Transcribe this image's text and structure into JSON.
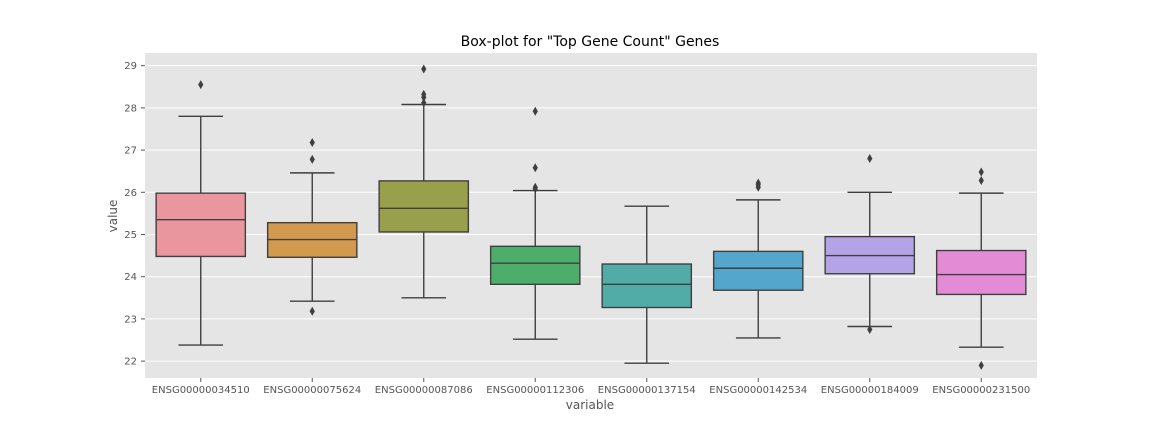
{
  "chart_data": {
    "type": "box",
    "title": "Box-plot for \"Top Gene Count\" Genes",
    "xlabel": "variable",
    "ylabel": "value",
    "ylim": [
      21.6,
      29.3
    ],
    "yticks": [
      22,
      23,
      24,
      25,
      26,
      27,
      28,
      29
    ],
    "grid": true,
    "legend": "none",
    "categories": [
      "ENSG00000034510",
      "ENSG00000075624",
      "ENSG00000087086",
      "ENSG00000112306",
      "ENSG00000137154",
      "ENSG00000142534",
      "ENSG00000184009",
      "ENSG00000231500"
    ],
    "boxes": [
      {
        "whisker_low": 22.38,
        "q1": 24.48,
        "median": 25.35,
        "q3": 25.98,
        "whisker_high": 27.8,
        "outliers": [
          28.55
        ],
        "color": "#e9969f"
      },
      {
        "whisker_low": 23.42,
        "q1": 24.46,
        "median": 24.88,
        "q3": 25.28,
        "whisker_high": 26.46,
        "outliers": [
          23.18,
          26.78,
          27.18
        ],
        "color": "#d29a4f"
      },
      {
        "whisker_low": 23.5,
        "q1": 25.06,
        "median": 25.62,
        "q3": 26.27,
        "whisker_high": 28.08,
        "outliers": [
          28.12,
          28.25,
          28.32,
          28.92
        ],
        "color": "#99a04b"
      },
      {
        "whisker_low": 22.52,
        "q1": 23.82,
        "median": 24.32,
        "q3": 24.72,
        "whisker_high": 26.04,
        "outliers": [
          26.08,
          26.12,
          26.58,
          27.92
        ],
        "color": "#4cae6a"
      },
      {
        "whisker_low": 21.95,
        "q1": 23.27,
        "median": 23.82,
        "q3": 24.3,
        "whisker_high": 25.67,
        "outliers": [],
        "color": "#51aca8"
      },
      {
        "whisker_low": 22.55,
        "q1": 23.68,
        "median": 24.2,
        "q3": 24.6,
        "whisker_high": 25.82,
        "outliers": [
          26.12,
          26.18,
          26.22
        ],
        "color": "#55a6cd"
      },
      {
        "whisker_low": 22.82,
        "q1": 24.07,
        "median": 24.5,
        "q3": 24.95,
        "whisker_high": 26.0,
        "outliers": [
          22.75,
          26.8
        ],
        "color": "#b4a4e7"
      },
      {
        "whisker_low": 22.33,
        "q1": 23.58,
        "median": 24.05,
        "q3": 24.62,
        "whisker_high": 25.98,
        "outliers": [
          21.9,
          26.28,
          26.48
        ],
        "color": "#e48bd5"
      }
    ],
    "colors": {
      "plot_background": "#e5e5e5",
      "grid": "#ffffff",
      "box_edge": "#3f3f3f"
    }
  }
}
